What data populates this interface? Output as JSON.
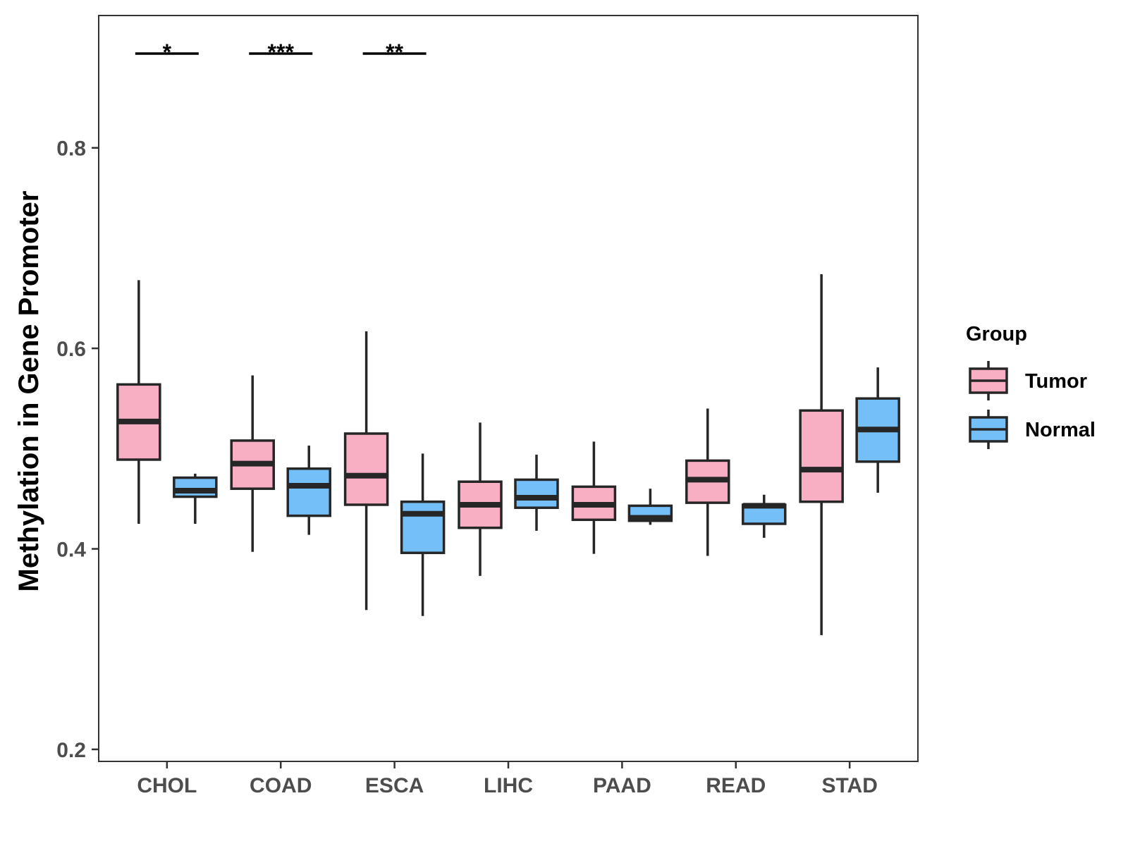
{
  "chart_data": {
    "type": "boxplot",
    "ylabel": "Methylation in Gene Promoter",
    "xlabel": "",
    "ylim": [
      0.188,
      0.932
    ],
    "yticks": [
      0.2,
      0.4,
      0.6,
      0.8
    ],
    "ytick_labels": [
      "0.2",
      "0.4",
      "0.6",
      "0.8"
    ],
    "categories": [
      "CHOL",
      "COAD",
      "ESCA",
      "LIHC",
      "PAAD",
      "READ",
      "STAD"
    ],
    "legend": {
      "title": "Group",
      "position": "right",
      "entries": [
        {
          "name": "Tumor",
          "color": "#F9AFC3"
        },
        {
          "name": "Normal",
          "color": "#74BFF8"
        }
      ]
    },
    "series": [
      {
        "name": "Tumor",
        "color": "#F9AFC3",
        "boxes": [
          {
            "category": "CHOL",
            "min": 0.425,
            "q1": 0.489,
            "median": 0.527,
            "q3": 0.564,
            "max": 0.668
          },
          {
            "category": "COAD",
            "min": 0.397,
            "q1": 0.46,
            "median": 0.485,
            "q3": 0.508,
            "max": 0.573
          },
          {
            "category": "ESCA",
            "min": 0.339,
            "q1": 0.444,
            "median": 0.473,
            "q3": 0.515,
            "max": 0.617
          },
          {
            "category": "LIHC",
            "min": 0.373,
            "q1": 0.421,
            "median": 0.444,
            "q3": 0.467,
            "max": 0.526
          },
          {
            "category": "PAAD",
            "min": 0.395,
            "q1": 0.429,
            "median": 0.444,
            "q3": 0.462,
            "max": 0.507
          },
          {
            "category": "READ",
            "min": 0.393,
            "q1": 0.446,
            "median": 0.469,
            "q3": 0.488,
            "max": 0.54
          },
          {
            "category": "STAD",
            "min": 0.314,
            "q1": 0.447,
            "median": 0.479,
            "q3": 0.538,
            "max": 0.674
          }
        ]
      },
      {
        "name": "Normal",
        "color": "#74BFF8",
        "boxes": [
          {
            "category": "CHOL",
            "min": 0.425,
            "q1": 0.452,
            "median": 0.458,
            "q3": 0.471,
            "max": 0.475
          },
          {
            "category": "COAD",
            "min": 0.414,
            "q1": 0.433,
            "median": 0.463,
            "q3": 0.48,
            "max": 0.503
          },
          {
            "category": "ESCA",
            "min": 0.333,
            "q1": 0.396,
            "median": 0.435,
            "q3": 0.447,
            "max": 0.495
          },
          {
            "category": "LIHC",
            "min": 0.418,
            "q1": 0.441,
            "median": 0.451,
            "q3": 0.469,
            "max": 0.494
          },
          {
            "category": "PAAD",
            "min": 0.424,
            "q1": 0.428,
            "median": 0.431,
            "q3": 0.443,
            "max": 0.46
          },
          {
            "category": "READ",
            "min": 0.411,
            "q1": 0.425,
            "median": 0.443,
            "q3": 0.444,
            "max": 0.454
          },
          {
            "category": "STAD",
            "min": 0.456,
            "q1": 0.487,
            "median": 0.519,
            "q3": 0.55,
            "max": 0.581
          }
        ]
      }
    ],
    "significance": [
      {
        "category": "CHOL",
        "label": "*",
        "y": 0.894
      },
      {
        "category": "COAD",
        "label": "***",
        "y": 0.894
      },
      {
        "category": "ESCA",
        "label": "**",
        "y": 0.894
      }
    ],
    "grid": false
  }
}
